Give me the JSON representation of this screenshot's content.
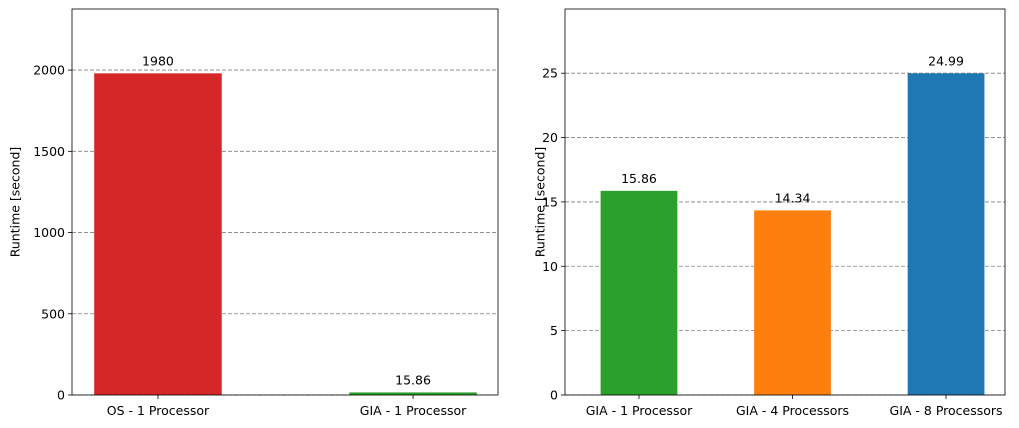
{
  "chart_data": [
    {
      "type": "bar",
      "ylabel": "Runtime [second]",
      "categories": [
        "OS - 1 Processor",
        "GIA - 1 Processor"
      ],
      "values": [
        1980,
        15.86
      ],
      "colors": [
        "#d62728",
        "#2ca02c"
      ],
      "ylim": [
        0,
        2376
      ],
      "yticks": [
        0,
        500,
        1000,
        1500,
        2000
      ],
      "grid": true
    },
    {
      "type": "bar",
      "ylabel": "Runtime [second]",
      "categories": [
        "GIA - 1 Processor",
        "GIA - 4 Processors",
        "GIA - 8 Processors"
      ],
      "values": [
        15.86,
        14.34,
        24.99
      ],
      "colors": [
        "#2ca02c",
        "#ff7f0e",
        "#1f77b4"
      ],
      "ylim": [
        0,
        29.988
      ],
      "yticks": [
        0,
        5,
        10,
        15,
        20,
        25
      ],
      "grid": true
    }
  ]
}
